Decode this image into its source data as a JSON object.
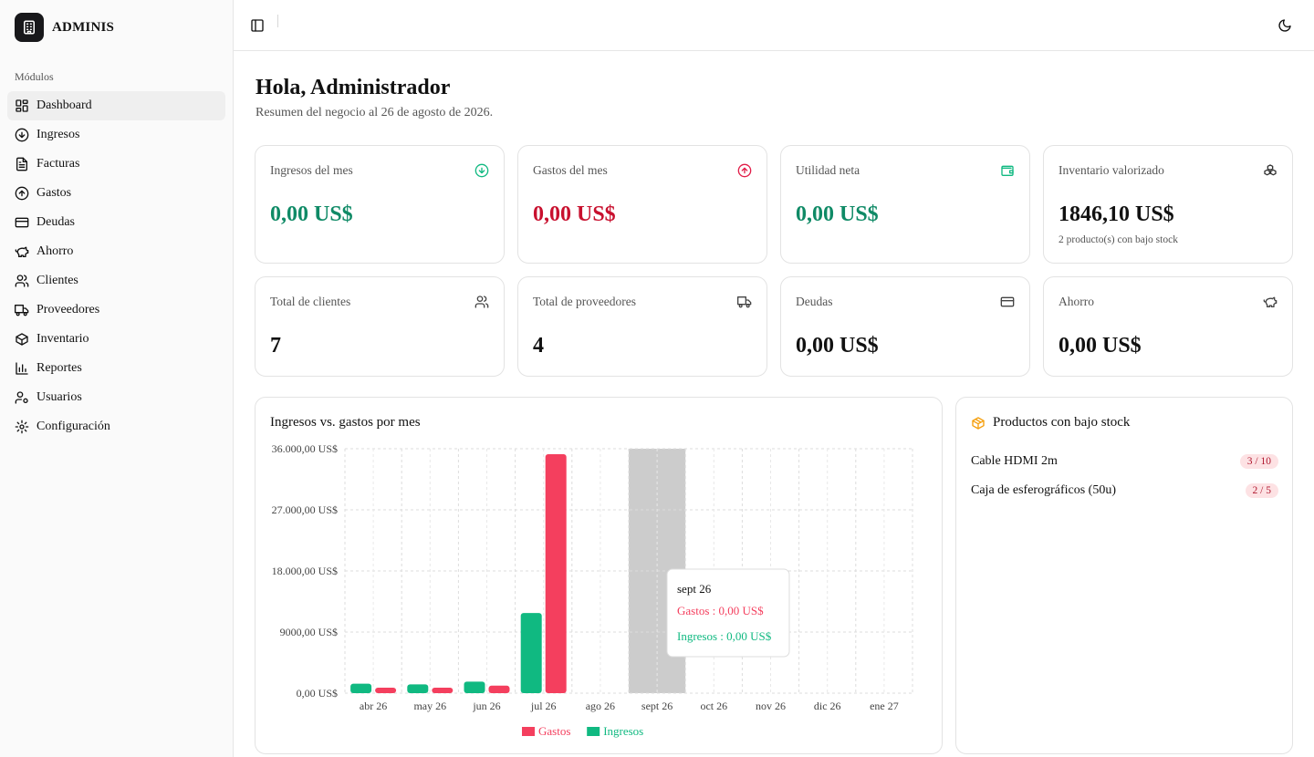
{
  "app": {
    "name": "ADMINIS"
  },
  "sidebar": {
    "group_label": "Módulos",
    "items": [
      {
        "label": "Dashboard",
        "icon": "layout-grid-icon"
      },
      {
        "label": "Ingresos",
        "icon": "arrow-down-circle-icon"
      },
      {
        "label": "Facturas",
        "icon": "file-text-icon"
      },
      {
        "label": "Gastos",
        "icon": "arrow-up-circle-icon"
      },
      {
        "label": "Deudas",
        "icon": "credit-card-icon"
      },
      {
        "label": "Ahorro",
        "icon": "piggy-bank-icon"
      },
      {
        "label": "Clientes",
        "icon": "users-icon"
      },
      {
        "label": "Proveedores",
        "icon": "truck-icon"
      },
      {
        "label": "Inventario",
        "icon": "package-icon"
      },
      {
        "label": "Reportes",
        "icon": "bar-chart-icon"
      },
      {
        "label": "Usuarios",
        "icon": "user-cog-icon"
      },
      {
        "label": "Configuración",
        "icon": "settings-icon"
      }
    ]
  },
  "header": {
    "title": "Hola, Administrador",
    "subtitle": "Resumen del negocio al 26 de agosto de 2026."
  },
  "stats": [
    {
      "label": "Ingresos del mes",
      "value": "0,00 US$",
      "icon": "arrow-down-circle-icon",
      "color": "#0f8a66"
    },
    {
      "label": "Gastos del mes",
      "value": "0,00 US$",
      "icon": "arrow-up-circle-icon",
      "color": "#c8102e"
    },
    {
      "label": "Utilidad neta",
      "value": "0,00 US$",
      "icon": "wallet-icon",
      "color": "#0f8a66"
    },
    {
      "label": "Inventario valorizado",
      "value": "1846,10 US$",
      "note": "2 producto(s) con bajo stock",
      "icon": "boxes-icon"
    },
    {
      "label": "Total de clientes",
      "value": "7",
      "icon": "users-icon"
    },
    {
      "label": "Total de proveedores",
      "value": "4",
      "icon": "truck-icon"
    },
    {
      "label": "Deudas",
      "value": "0,00 US$",
      "icon": "credit-card-icon"
    },
    {
      "label": "Ahorro",
      "value": "0,00 US$",
      "icon": "piggy-bank-icon"
    }
  ],
  "chart_panel": {
    "title": "Ingresos vs. gastos por mes"
  },
  "chart_data": {
    "type": "bar",
    "categories": [
      "abr 26",
      "may 26",
      "jun 26",
      "jul 26",
      "ago 26",
      "sept 26",
      "oct 26",
      "nov 26",
      "dic 26",
      "ene 27"
    ],
    "series": [
      {
        "name": "Ingresos",
        "color": "#10b981",
        "values": [
          1400,
          1300,
          1700,
          11800,
          0,
          0,
          0,
          0,
          0,
          0
        ]
      },
      {
        "name": "Gastos",
        "color": "#f43f5e",
        "values": [
          800,
          800,
          1100,
          35200,
          0,
          0,
          0,
          0,
          0,
          0
        ]
      }
    ],
    "legend_order": [
      "Gastos",
      "Ingresos"
    ],
    "y_ticks": [
      "0,00 US$",
      "9000,00 US$",
      "18.000,00 US$",
      "27.000,00 US$",
      "36.000,00 US$"
    ],
    "y_tick_values": [
      0,
      9000,
      18000,
      27000,
      36000
    ],
    "ylim": [
      0,
      36000
    ],
    "grid": true,
    "legend": "bottom",
    "highlighted_category": "sept 26",
    "tooltip": {
      "title": "sept 26",
      "lines": [
        {
          "series": "Gastos",
          "text": "Gastos : 0,00 US$",
          "color": "#f43f5e"
        },
        {
          "series": "Ingresos",
          "text": "Ingresos : 0,00 US$",
          "color": "#10b981"
        }
      ]
    }
  },
  "low_stock": {
    "title": "Productos con bajo stock",
    "items": [
      {
        "name": "Cable HDMI 2m",
        "badge": "3 / 10"
      },
      {
        "name": "Caja de esferográficos (50u)",
        "badge": "2 / 5"
      }
    ]
  }
}
